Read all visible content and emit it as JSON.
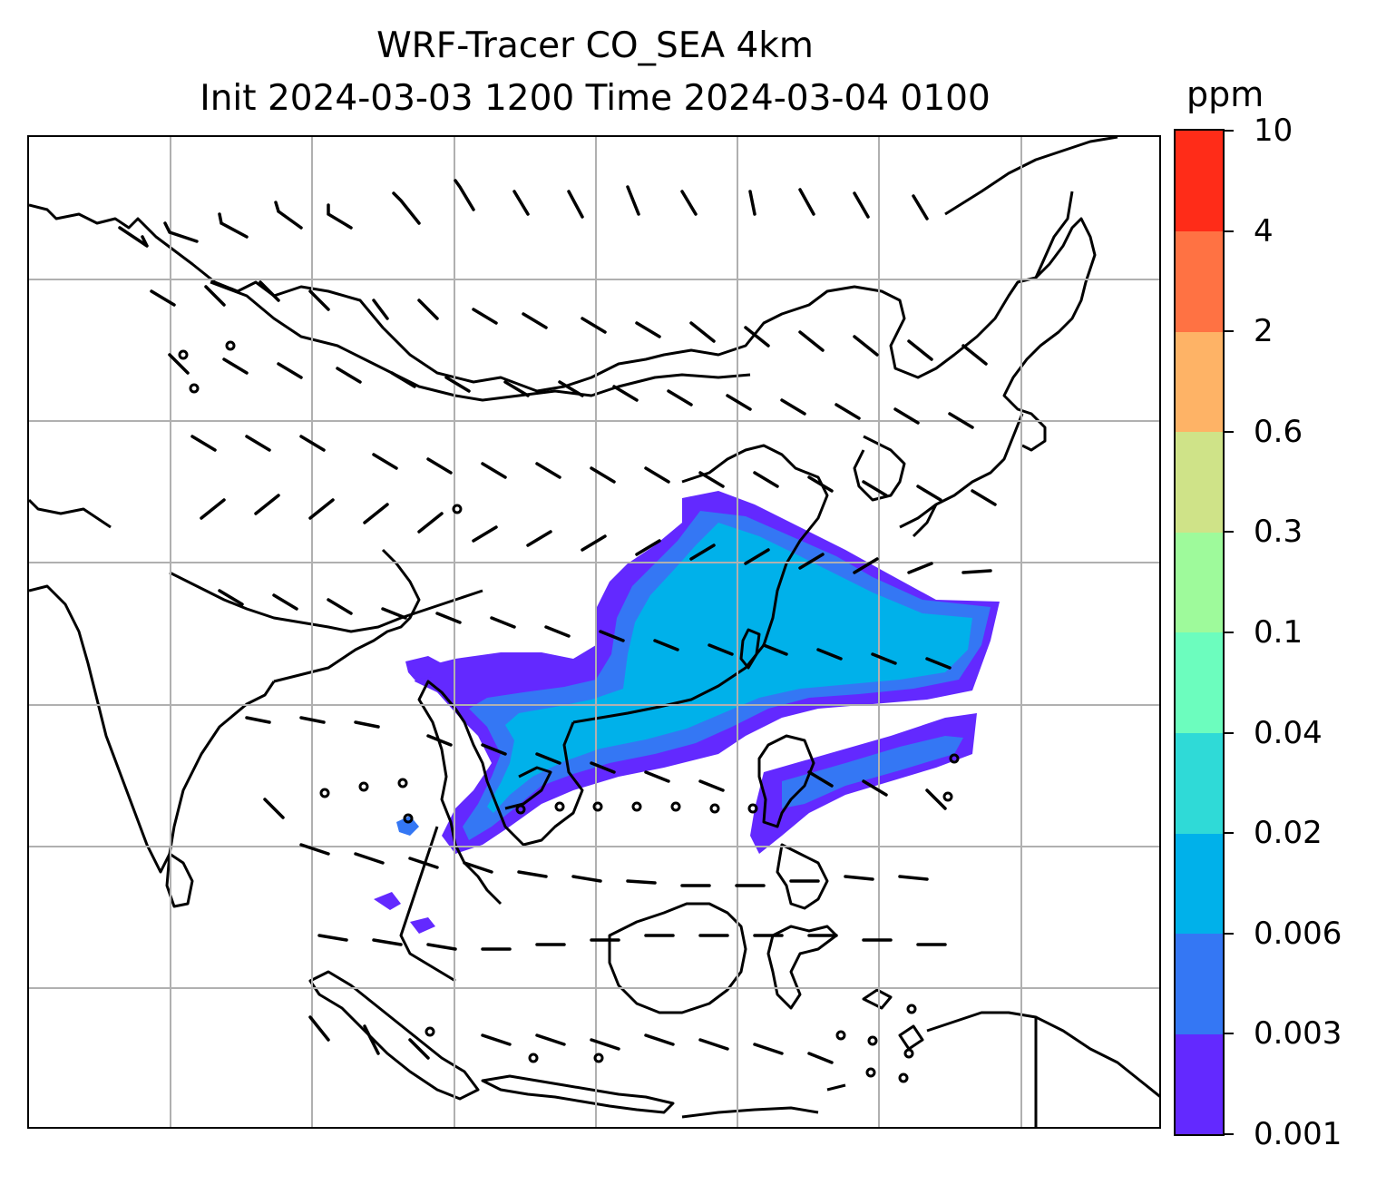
{
  "title": {
    "line1": "WRF-Tracer CO_SEA 4km",
    "line2": "Init 2024-03-03 1200 Time 2024-03-04 0100"
  },
  "colorbar": {
    "unit": "ppm",
    "levels": [
      "0.001",
      "0.003",
      "0.006",
      "0.02",
      "0.04",
      "0.1",
      "0.3",
      "0.6",
      "2",
      "4",
      "10"
    ],
    "colors": [
      "#6329ff",
      "#3477f4",
      "#00b1ea",
      "#2fdad7",
      "#6cfdbe",
      "#9efa9b",
      "#cfe388",
      "#feb366",
      "#ff7243",
      "#ff2c18"
    ]
  },
  "map": {
    "plume_colors": {
      "outer": "#6329ff",
      "middle": "#3477f4",
      "core": "#00b1ea"
    },
    "gridline_color": "#b0b0b0",
    "coastline_color": "#000000",
    "barb_color": "#000000"
  }
}
